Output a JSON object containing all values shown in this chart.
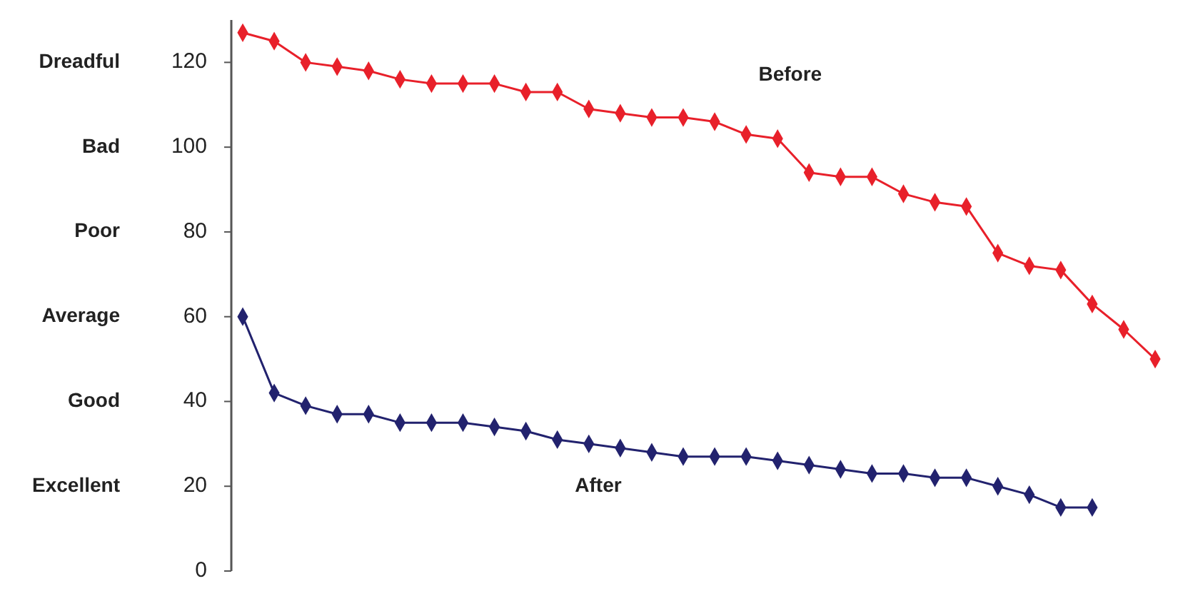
{
  "chart_data": {
    "type": "line",
    "categories": [
      null,
      null,
      null,
      null,
      null,
      null,
      null,
      null,
      null,
      null,
      null,
      null,
      null,
      null,
      null,
      null,
      null,
      null,
      null,
      null,
      null,
      null,
      null,
      null,
      null,
      null,
      null,
      null,
      null,
      null
    ],
    "series": [
      {
        "name": "Before",
        "color": "#e8202a",
        "values": [
          127,
          125,
          120,
          119,
          118,
          116,
          115,
          115,
          115,
          113,
          113,
          109,
          108,
          107,
          107,
          106,
          103,
          102,
          94,
          93,
          93,
          89,
          87,
          86,
          75,
          72,
          71,
          63,
          57,
          50
        ]
      },
      {
        "name": "After",
        "color": "#22226e",
        "values": [
          60,
          42,
          39,
          37,
          37,
          35,
          35,
          35,
          34,
          33,
          31,
          30,
          29,
          28,
          27,
          27,
          27,
          26,
          25,
          24,
          23,
          23,
          22,
          22,
          20,
          18,
          15,
          15,
          null,
          null
        ]
      }
    ],
    "ylim": [
      0,
      130
    ],
    "yticks": [
      0,
      20,
      40,
      60,
      80,
      100,
      120
    ],
    "annotations": [
      "Dreadful",
      "Bad",
      "Poor",
      "Average",
      "Good",
      "Excellent"
    ],
    "marker": "diamond",
    "grid": false
  }
}
